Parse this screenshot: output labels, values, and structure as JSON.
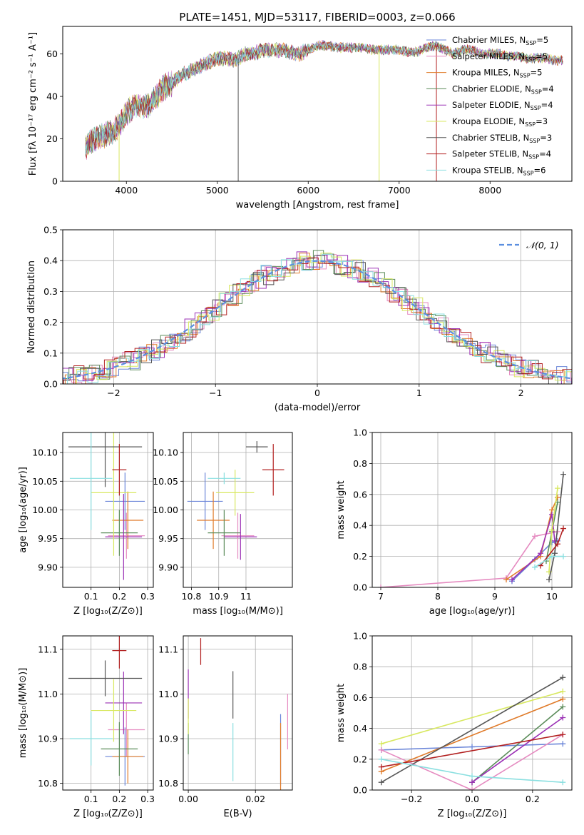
{
  "page_title": "PLATE=1451, MJD=53117, FIBERID=0003, z=0.066",
  "colors": {
    "chab_miles": "#6a85d8",
    "salp_miles": "#e58ac0",
    "krou_miles": "#e07b2a",
    "chab_elodie": "#5b8c5a",
    "salp_elodie": "#9b30b5",
    "krou_elodie": "#d8e860",
    "chab_stelib": "#555555",
    "salp_stelib": "#b22020",
    "krou_stelib": "#8adfe0",
    "gauss": "#5b8fe0",
    "grid": "#b0b0b0"
  },
  "legend": [
    {
      "name": "Chabrier MILES",
      "nssp": "5",
      "color": "#6a85d8"
    },
    {
      "name": "Salpeter MILES",
      "nssp": "5",
      "color": "#e58ac0"
    },
    {
      "name": "Kroupa MILES",
      "nssp": "5",
      "color": "#e07b2a"
    },
    {
      "name": "Chabrier ELODIE",
      "nssp": "4",
      "color": "#5b8c5a"
    },
    {
      "name": "Salpeter ELODIE",
      "nssp": "4",
      "color": "#9b30b5"
    },
    {
      "name": "Kroupa ELODIE",
      "nssp": "3",
      "color": "#d8e860"
    },
    {
      "name": "Chabrier STELIB",
      "nssp": "3",
      "color": "#555555"
    },
    {
      "name": "Salpeter STELIB",
      "nssp": "4",
      "color": "#b22020"
    },
    {
      "name": "Kroupa STELIB",
      "nssp": "6",
      "color": "#8adfe0"
    }
  ],
  "legend_ssp_prefix": "N",
  "legend_ssp_sub": "SSP",
  "chart_data": [
    {
      "id": "spectrum",
      "type": "line",
      "title": "PLATE=1451, MJD=53117, FIBERID=0003, z=0.066",
      "xlabel": "wavelength [Angstrom, rest frame]",
      "ylabel": "Flux [fλ 10⁻¹⁷ erg cm⁻² s⁻¹ A⁻¹]",
      "xlim": [
        3300,
        8900
      ],
      "ylim": [
        0,
        73
      ],
      "xticks": [
        4000,
        5000,
        6000,
        7000,
        8000
      ],
      "yticks": [
        0,
        20,
        40,
        60
      ],
      "spectrum_x": [
        3550,
        3650,
        3750,
        3850,
        3950,
        4000,
        4100,
        4200,
        4300,
        4400,
        4500,
        4600,
        4700,
        4800,
        4900,
        5000,
        5100,
        5200,
        5300,
        5400,
        5500,
        5600,
        5700,
        5800,
        5900,
        6000,
        6100,
        6200,
        6300,
        6400,
        6500,
        6600,
        6700,
        6800,
        6900,
        7000,
        7100,
        7200,
        7300,
        7400,
        7500,
        7600,
        7700,
        7800,
        7900,
        8000,
        8100,
        8200,
        8300,
        8400,
        8500,
        8600,
        8700,
        8800
      ],
      "spectrum_y": [
        16,
        20,
        22,
        23,
        28,
        32,
        36,
        35,
        38,
        44,
        46,
        50,
        52,
        54,
        56,
        58,
        58,
        57,
        60,
        60,
        62,
        62,
        62,
        61,
        60,
        62,
        64,
        64,
        63,
        63,
        63,
        63,
        62,
        62,
        62,
        62,
        61,
        61,
        63,
        64,
        62,
        60,
        62,
        62,
        60,
        60,
        60,
        59,
        59,
        58,
        58,
        58,
        57,
        57
      ],
      "spikes": [
        {
          "x": 3920,
          "ymin": 0,
          "series": "Kroupa ELODIE"
        },
        {
          "x": 5230,
          "ymin": 0,
          "series": "Chabrier STELIB"
        },
        {
          "x": 6780,
          "ymin": 0,
          "series": "Kroupa ELODIE"
        },
        {
          "x": 7410,
          "ymin": 0,
          "series": "Salpeter STELIB"
        }
      ]
    },
    {
      "id": "residuals",
      "type": "histogram",
      "xlabel": "(data-model)/error",
      "ylabel": "Normed distribution",
      "xlim": [
        -2.5,
        2.5
      ],
      "ylim": [
        0,
        0.5
      ],
      "xticks": [
        -2,
        -1,
        0,
        1,
        2
      ],
      "yticks": [
        0.0,
        0.1,
        0.2,
        0.3,
        0.4,
        0.5
      ],
      "bin_width": 0.1,
      "gaussian_label": "𝒩(0, 1)"
    },
    {
      "id": "age_vs_Z",
      "type": "errorbar",
      "xlabel": "Z [log₁₀(Z/Z⊙)]",
      "ylabel": "age  [log₁₀(age/yr)]",
      "xlim": [
        0.0,
        0.32
      ],
      "ylim": [
        9.865,
        10.135
      ],
      "xticks": [
        0.1,
        0.2,
        0.3
      ],
      "yticks": [
        9.9,
        9.95,
        10.0,
        10.05,
        10.1
      ],
      "points": [
        {
          "series": "Chabrier MILES",
          "x": 0.22,
          "xerr": 0.07,
          "y": 10.015,
          "yerr": 0.05
        },
        {
          "series": "Salpeter MILES",
          "x": 0.225,
          "xerr": 0.065,
          "y": 9.955,
          "yerr": 0.04
        },
        {
          "series": "Kroupa MILES",
          "x": 0.23,
          "xerr": 0.055,
          "y": 9.982,
          "yerr": 0.05
        },
        {
          "series": "Chabrier ELODIE",
          "x": 0.2,
          "xerr": 0.065,
          "y": 9.96,
          "yerr": 0.04
        },
        {
          "series": "Salpeter ELODIE",
          "x": 0.215,
          "xerr": 0.065,
          "y": 9.953,
          "yerr": 0.075
        },
        {
          "series": "Kroupa ELODIE",
          "x": 0.18,
          "xerr": 0.08,
          "y": 10.03,
          "yerr": 0.11
        },
        {
          "series": "Chabrier STELIB",
          "x": 0.15,
          "xerr": 0.13,
          "y": 10.11,
          "yerr": 0.07
        },
        {
          "series": "Salpeter STELIB",
          "x": 0.2,
          "xerr": 0.025,
          "y": 10.07,
          "yerr": 0.045
        },
        {
          "series": "Kroupa STELIB",
          "x": 0.1,
          "xerr": 0.075,
          "y": 10.055,
          "yerr": 0.09
        }
      ]
    },
    {
      "id": "age_vs_mass",
      "type": "errorbar",
      "xlabel": "mass [log₁₀(M/M⊙)]",
      "ylabel": "",
      "xlim": [
        10.77,
        11.17
      ],
      "ylim": [
        9.865,
        10.135
      ],
      "xticks": [
        10.8,
        10.9,
        11.0
      ],
      "ytick_labels": [
        "9.90",
        "9.95",
        "10.00",
        "10.05",
        "10.10"
      ],
      "yticks": [
        9.9,
        9.95,
        10.0,
        10.05,
        10.1
      ],
      "points": [
        {
          "series": "Chabrier MILES",
          "x": 10.85,
          "xerr": 0.065,
          "y": 10.015,
          "yerr": 0.05
        },
        {
          "series": "Salpeter MILES",
          "x": 10.97,
          "xerr": 0.06,
          "y": 9.955,
          "yerr": 0.04
        },
        {
          "series": "Kroupa MILES",
          "x": 10.88,
          "xerr": 0.06,
          "y": 9.982,
          "yerr": 0.05
        },
        {
          "series": "Chabrier ELODIE",
          "x": 10.92,
          "xerr": 0.06,
          "y": 9.96,
          "yerr": 0.04
        },
        {
          "series": "Salpeter ELODIE",
          "x": 10.98,
          "xerr": 0.06,
          "y": 9.953,
          "yerr": 0.04
        },
        {
          "series": "Kroupa ELODIE",
          "x": 10.96,
          "xerr": 0.07,
          "y": 10.03,
          "yerr": 0.04
        },
        {
          "series": "Chabrier STELIB",
          "x": 11.04,
          "xerr": 0.04,
          "y": 10.11,
          "yerr": 0.01
        },
        {
          "series": "Salpeter STELIB",
          "x": 11.1,
          "xerr": 0.04,
          "y": 10.07,
          "yerr": 0.045
        },
        {
          "series": "Kroupa STELIB",
          "x": 10.92,
          "xerr": 0.06,
          "y": 10.055,
          "yerr": 0.01
        }
      ]
    },
    {
      "id": "massweight_vs_age",
      "type": "line",
      "xlabel": "age  [log₁₀(age/yr)]",
      "ylabel": "mass weight",
      "xlim": [
        6.85,
        10.35
      ],
      "ylim": [
        0,
        1.0
      ],
      "xticks": [
        7,
        8,
        9,
        10
      ],
      "yticks": [
        0.0,
        0.2,
        0.4,
        0.6,
        0.8,
        1.0
      ],
      "series": [
        {
          "name": "Chabrier MILES",
          "x": [
            9.3,
            9.7,
            10.0,
            10.1
          ],
          "y": [
            0.04,
            0.18,
            0.29,
            0.3
          ]
        },
        {
          "name": "Salpeter MILES",
          "x": [
            7.0,
            9.2,
            9.7,
            10.1
          ],
          "y": [
            0.0,
            0.06,
            0.33,
            0.36
          ]
        },
        {
          "name": "Kroupa MILES",
          "x": [
            9.2,
            9.8,
            10.0,
            10.1
          ],
          "y": [
            0.05,
            0.2,
            0.5,
            0.58
          ]
        },
        {
          "name": "Chabrier ELODIE",
          "x": [
            9.9,
            10.0,
            10.1
          ],
          "y": [
            0.17,
            0.36,
            0.55
          ]
        },
        {
          "name": "Salpeter ELODIE",
          "x": [
            9.3,
            9.8,
            10.0,
            10.05
          ],
          "y": [
            0.05,
            0.22,
            0.47,
            0.3
          ]
        },
        {
          "name": "Kroupa ELODIE",
          "x": [
            9.95,
            10.0,
            10.1
          ],
          "y": [
            0.1,
            0.37,
            0.64
          ]
        },
        {
          "name": "Chabrier STELIB",
          "x": [
            9.95,
            10.05,
            10.2
          ],
          "y": [
            0.05,
            0.22,
            0.73
          ]
        },
        {
          "name": "Salpeter STELIB",
          "x": [
            9.8,
            10.1,
            10.2
          ],
          "y": [
            0.14,
            0.28,
            0.38
          ]
        },
        {
          "name": "Kroupa STELIB",
          "x": [
            9.7,
            10.0,
            10.2
          ],
          "y": [
            0.13,
            0.2,
            0.2
          ]
        }
      ]
    },
    {
      "id": "mass_vs_Z",
      "type": "errorbar",
      "xlabel": "Z [log₁₀(Z/Z⊙)]",
      "ylabel": "mass [log₁₀(M/M⊙)]",
      "xlim": [
        0.0,
        0.32
      ],
      "ylim": [
        10.785,
        11.13
      ],
      "xticks": [
        0.1,
        0.2,
        0.3
      ],
      "yticks": [
        10.8,
        10.9,
        11.0,
        11.1
      ],
      "points": [
        {
          "series": "Chabrier MILES",
          "x": 0.22,
          "xerr": 0.07,
          "y": 10.86,
          "yerr": 0.065
        },
        {
          "series": "Salpeter MILES",
          "x": 0.225,
          "xerr": 0.065,
          "y": 10.92,
          "yerr": 0.06
        },
        {
          "series": "Kroupa MILES",
          "x": 0.23,
          "xerr": 0.055,
          "y": 10.86,
          "yerr": 0.06
        },
        {
          "series": "Chabrier ELODIE",
          "x": 0.2,
          "xerr": 0.065,
          "y": 10.877,
          "yerr": 0.06
        },
        {
          "series": "Salpeter ELODIE",
          "x": 0.215,
          "xerr": 0.065,
          "y": 10.98,
          "yerr": 0.07
        },
        {
          "series": "Kroupa ELODIE",
          "x": 0.18,
          "xerr": 0.08,
          "y": 10.963,
          "yerr": 0.07
        },
        {
          "series": "Chabrier STELIB",
          "x": 0.15,
          "xerr": 0.13,
          "y": 11.035,
          "yerr": 0.04
        },
        {
          "series": "Salpeter STELIB",
          "x": 0.2,
          "xerr": 0.025,
          "y": 11.097,
          "yerr": 0.04
        },
        {
          "series": "Kroupa STELIB",
          "x": 0.1,
          "xerr": 0.075,
          "y": 10.9,
          "yerr": 0.06
        }
      ]
    },
    {
      "id": "mass_vs_EBV",
      "type": "errorbar",
      "xlabel": "E(B-V)",
      "ylabel": "",
      "xlim": [
        -0.0015,
        0.031
      ],
      "ylim": [
        10.785,
        11.13
      ],
      "xticks": [
        0.0,
        0.02
      ],
      "xtick_labels": [
        "0.00",
        "0.02"
      ],
      "yticks": [
        10.8,
        10.9,
        11.0,
        11.1
      ],
      "points": [
        {
          "series": "Chabrier MILES",
          "x": 0.0275,
          "xerr": 0.0,
          "y": 10.875,
          "yerr": 0.08
        },
        {
          "series": "Salpeter MILES",
          "x": 0.0296,
          "xerr": 0.0,
          "y": 10.938,
          "yerr": 0.062
        },
        {
          "series": "Kroupa MILES",
          "x": 0.0275,
          "xerr": 0.0,
          "y": 10.86,
          "yerr": 0.075
        },
        {
          "series": "Chabrier ELODIE",
          "x": 0.0,
          "xerr": 0.0,
          "y": 10.9,
          "yerr": 0.035
        },
        {
          "series": "Salpeter ELODIE",
          "x": 0.0,
          "xerr": 0.0,
          "y": 11.0,
          "yerr": 0.055
        },
        {
          "series": "Kroupa ELODIE",
          "x": 0.0,
          "xerr": 0.0,
          "y": 10.95,
          "yerr": 0.04
        },
        {
          "series": "Chabrier STELIB",
          "x": 0.0133,
          "xerr": 0.0,
          "y": 10.998,
          "yerr": 0.053
        },
        {
          "series": "Salpeter STELIB",
          "x": 0.0037,
          "xerr": 0.0,
          "y": 11.095,
          "yerr": 0.03
        },
        {
          "series": "Kroupa STELIB",
          "x": 0.0133,
          "xerr": 0.0,
          "y": 10.87,
          "yerr": 0.065
        }
      ]
    },
    {
      "id": "massweight_vs_Z",
      "type": "line",
      "xlabel": "Z [log₁₀(Z/Z⊙)]",
      "ylabel": "mass weight",
      "xlim": [
        -0.33,
        0.33
      ],
      "ylim": [
        0,
        1.0
      ],
      "xticks": [
        -0.2,
        0.0,
        0.2
      ],
      "xtick_labels": [
        "−0.2",
        "0.0",
        "0.2"
      ],
      "yticks": [
        0.0,
        0.2,
        0.4,
        0.6,
        0.8,
        1.0
      ],
      "series": [
        {
          "name": "Chabrier MILES",
          "x": [
            -0.3,
            0.0,
            0.3
          ],
          "y": [
            0.26,
            0.28,
            0.3
          ]
        },
        {
          "name": "Salpeter MILES",
          "x": [
            -0.3,
            0.0,
            0.3
          ],
          "y": [
            0.26,
            0.0,
            0.36
          ]
        },
        {
          "name": "Kroupa MILES",
          "x": [
            -0.3,
            0.3
          ],
          "y": [
            0.12,
            0.59
          ]
        },
        {
          "name": "Chabrier ELODIE",
          "x": [
            0.0,
            0.3
          ],
          "y": [
            0.05,
            0.54
          ]
        },
        {
          "name": "Salpeter ELODIE",
          "x": [
            0.0,
            0.3
          ],
          "y": [
            0.05,
            0.47
          ]
        },
        {
          "name": "Kroupa ELODIE",
          "x": [
            -0.3,
            0.3
          ],
          "y": [
            0.3,
            0.64
          ]
        },
        {
          "name": "Chabrier STELIB",
          "x": [
            -0.3,
            0.3
          ],
          "y": [
            0.05,
            0.73
          ]
        },
        {
          "name": "Salpeter STELIB",
          "x": [
            -0.3,
            0.3
          ],
          "y": [
            0.15,
            0.36
          ]
        },
        {
          "name": "Kroupa STELIB",
          "x": [
            -0.3,
            0.0,
            0.3
          ],
          "y": [
            0.2,
            0.09,
            0.05
          ]
        }
      ]
    }
  ]
}
